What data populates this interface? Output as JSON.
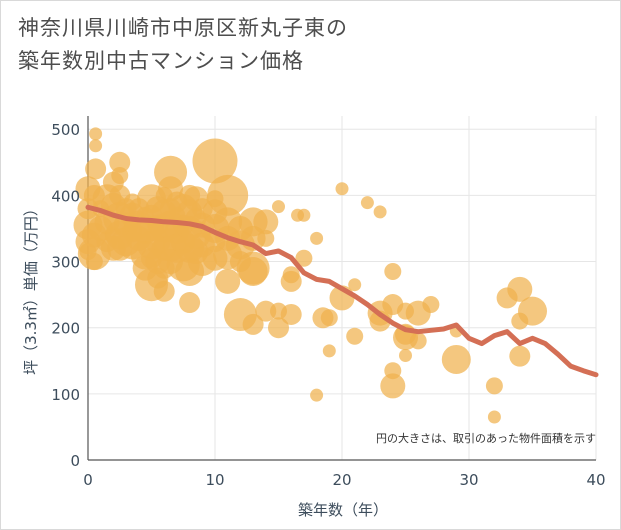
{
  "title": "神奈川県川崎市中原区新丸子東の\n築年数別中古マンション価格",
  "chart_data": {
    "type": "scatter",
    "xlabel": "築年数（年）",
    "ylabel": "坪（3.3㎡）単価（万円）",
    "xlim": [
      0,
      40
    ],
    "ylim": [
      0,
      520
    ],
    "xticks": [
      "0",
      "10",
      "20",
      "30",
      "40"
    ],
    "yticks": [
      "0",
      "100",
      "200",
      "300",
      "400",
      "500"
    ],
    "note": "円の大きさは、取引のあった物件面積を示す",
    "colors": {
      "points": "#f0b24e",
      "trend": "#d46f55",
      "grid": "#e6e6e6"
    },
    "points": [
      {
        "x": 0,
        "y": 410,
        "s": 5
      },
      {
        "x": 0,
        "y": 380,
        "s": 4
      },
      {
        "x": 0,
        "y": 355,
        "s": 6
      },
      {
        "x": 0,
        "y": 330,
        "s": 5
      },
      {
        "x": 0,
        "y": 315,
        "s": 3
      },
      {
        "x": 0.5,
        "y": 400,
        "s": 4
      },
      {
        "x": 0.5,
        "y": 340,
        "s": 5
      },
      {
        "x": 0.5,
        "y": 312,
        "s": 7
      },
      {
        "x": 0.5,
        "y": 300,
        "s": 3
      },
      {
        "x": 0.6,
        "y": 493,
        "s": 2
      },
      {
        "x": 0.6,
        "y": 475,
        "s": 2
      },
      {
        "x": 0.6,
        "y": 440,
        "s": 4
      },
      {
        "x": 1,
        "y": 380,
        "s": 3
      },
      {
        "x": 1,
        "y": 350,
        "s": 5
      },
      {
        "x": 1.5,
        "y": 395,
        "s": 6
      },
      {
        "x": 1.5,
        "y": 360,
        "s": 5
      },
      {
        "x": 1.5,
        "y": 330,
        "s": 4
      },
      {
        "x": 2,
        "y": 420,
        "s": 4
      },
      {
        "x": 2,
        "y": 385,
        "s": 5
      },
      {
        "x": 2,
        "y": 340,
        "s": 3
      },
      {
        "x": 2,
        "y": 320,
        "s": 5
      },
      {
        "x": 2.5,
        "y": 450,
        "s": 4
      },
      {
        "x": 2.5,
        "y": 430,
        "s": 3
      },
      {
        "x": 2.5,
        "y": 400,
        "s": 4
      },
      {
        "x": 2.5,
        "y": 365,
        "s": 7
      },
      {
        "x": 2.5,
        "y": 340,
        "s": 6
      },
      {
        "x": 2.5,
        "y": 320,
        "s": 5
      },
      {
        "x": 3,
        "y": 380,
        "s": 4
      },
      {
        "x": 3,
        "y": 355,
        "s": 5
      },
      {
        "x": 3,
        "y": 330,
        "s": 6
      },
      {
        "x": 3.5,
        "y": 390,
        "s": 3
      },
      {
        "x": 3.5,
        "y": 370,
        "s": 5
      },
      {
        "x": 3.5,
        "y": 345,
        "s": 4
      },
      {
        "x": 3.5,
        "y": 325,
        "s": 6
      },
      {
        "x": 4,
        "y": 380,
        "s": 4
      },
      {
        "x": 4,
        "y": 355,
        "s": 6
      },
      {
        "x": 4,
        "y": 335,
        "s": 5
      },
      {
        "x": 4.5,
        "y": 370,
        "s": 3
      },
      {
        "x": 4.5,
        "y": 345,
        "s": 5
      },
      {
        "x": 4.5,
        "y": 310,
        "s": 6
      },
      {
        "x": 4.5,
        "y": 290,
        "s": 5
      },
      {
        "x": 5,
        "y": 395,
        "s": 6
      },
      {
        "x": 5,
        "y": 370,
        "s": 4
      },
      {
        "x": 5,
        "y": 350,
        "s": 5
      },
      {
        "x": 5,
        "y": 325,
        "s": 6
      },
      {
        "x": 5,
        "y": 305,
        "s": 4
      },
      {
        "x": 5,
        "y": 265,
        "s": 7
      },
      {
        "x": 5.5,
        "y": 380,
        "s": 5
      },
      {
        "x": 5.5,
        "y": 355,
        "s": 4
      },
      {
        "x": 5.5,
        "y": 330,
        "s": 5
      },
      {
        "x": 5.5,
        "y": 300,
        "s": 5
      },
      {
        "x": 5.5,
        "y": 275,
        "s": 4
      },
      {
        "x": 6,
        "y": 400,
        "s": 3
      },
      {
        "x": 6,
        "y": 375,
        "s": 5
      },
      {
        "x": 6,
        "y": 350,
        "s": 6
      },
      {
        "x": 6,
        "y": 320,
        "s": 5
      },
      {
        "x": 6,
        "y": 290,
        "s": 4
      },
      {
        "x": 6,
        "y": 255,
        "s": 4
      },
      {
        "x": 6.5,
        "y": 435,
        "s": 7
      },
      {
        "x": 6.5,
        "y": 410,
        "s": 5
      },
      {
        "x": 6.5,
        "y": 380,
        "s": 4
      },
      {
        "x": 6.5,
        "y": 355,
        "s": 6
      },
      {
        "x": 6.5,
        "y": 325,
        "s": 7
      },
      {
        "x": 6.5,
        "y": 300,
        "s": 5
      },
      {
        "x": 7,
        "y": 390,
        "s": 4
      },
      {
        "x": 7,
        "y": 370,
        "s": 3
      },
      {
        "x": 7,
        "y": 345,
        "s": 5
      },
      {
        "x": 7,
        "y": 320,
        "s": 6
      },
      {
        "x": 7.5,
        "y": 380,
        "s": 6
      },
      {
        "x": 7.5,
        "y": 355,
        "s": 4
      },
      {
        "x": 7.5,
        "y": 330,
        "s": 5
      },
      {
        "x": 7.5,
        "y": 295,
        "s": 7
      },
      {
        "x": 8,
        "y": 400,
        "s": 4
      },
      {
        "x": 8,
        "y": 375,
        "s": 5
      },
      {
        "x": 8,
        "y": 350,
        "s": 5
      },
      {
        "x": 8,
        "y": 320,
        "s": 6
      },
      {
        "x": 8,
        "y": 285,
        "s": 6
      },
      {
        "x": 8,
        "y": 238,
        "s": 4
      },
      {
        "x": 8.5,
        "y": 395,
        "s": 5
      },
      {
        "x": 8.5,
        "y": 365,
        "s": 4
      },
      {
        "x": 8.5,
        "y": 340,
        "s": 6
      },
      {
        "x": 8.5,
        "y": 315,
        "s": 5
      },
      {
        "x": 9,
        "y": 380,
        "s": 4
      },
      {
        "x": 9,
        "y": 355,
        "s": 5
      },
      {
        "x": 9,
        "y": 325,
        "s": 5
      },
      {
        "x": 9,
        "y": 300,
        "s": 6
      },
      {
        "x": 10,
        "y": 452,
        "s": 10
      },
      {
        "x": 10,
        "y": 395,
        "s": 3
      },
      {
        "x": 10,
        "y": 375,
        "s": 5
      },
      {
        "x": 10,
        "y": 350,
        "s": 6
      },
      {
        "x": 10,
        "y": 330,
        "s": 4
      },
      {
        "x": 10,
        "y": 305,
        "s": 5
      },
      {
        "x": 11,
        "y": 400,
        "s": 9
      },
      {
        "x": 11,
        "y": 360,
        "s": 6
      },
      {
        "x": 11,
        "y": 335,
        "s": 5
      },
      {
        "x": 11,
        "y": 310,
        "s": 6
      },
      {
        "x": 11,
        "y": 270,
        "s": 5
      },
      {
        "x": 12,
        "y": 350,
        "s": 5
      },
      {
        "x": 12,
        "y": 325,
        "s": 6
      },
      {
        "x": 12,
        "y": 300,
        "s": 4
      },
      {
        "x": 12,
        "y": 220,
        "s": 7
      },
      {
        "x": 13,
        "y": 360,
        "s": 6
      },
      {
        "x": 13,
        "y": 335,
        "s": 5
      },
      {
        "x": 13,
        "y": 290,
        "s": 7
      },
      {
        "x": 13,
        "y": 285,
        "s": 6
      },
      {
        "x": 13,
        "y": 205,
        "s": 4
      },
      {
        "x": 14,
        "y": 360,
        "s": 5
      },
      {
        "x": 14,
        "y": 335,
        "s": 3
      },
      {
        "x": 14,
        "y": 225,
        "s": 4
      },
      {
        "x": 15,
        "y": 383,
        "s": 2
      },
      {
        "x": 15,
        "y": 225,
        "s": 3
      },
      {
        "x": 15,
        "y": 200,
        "s": 4
      },
      {
        "x": 16,
        "y": 280,
        "s": 3
      },
      {
        "x": 16,
        "y": 270,
        "s": 4
      },
      {
        "x": 16,
        "y": 220,
        "s": 4
      },
      {
        "x": 16.5,
        "y": 370,
        "s": 2
      },
      {
        "x": 17,
        "y": 370,
        "s": 2
      },
      {
        "x": 17,
        "y": 305,
        "s": 3
      },
      {
        "x": 18,
        "y": 335,
        "s": 2
      },
      {
        "x": 18,
        "y": 98,
        "s": 2
      },
      {
        "x": 18.5,
        "y": 215,
        "s": 4
      },
      {
        "x": 19,
        "y": 215,
        "s": 3
      },
      {
        "x": 19,
        "y": 165,
        "s": 2
      },
      {
        "x": 20,
        "y": 410,
        "s": 2
      },
      {
        "x": 20,
        "y": 245,
        "s": 5
      },
      {
        "x": 21,
        "y": 265,
        "s": 2
      },
      {
        "x": 21,
        "y": 187,
        "s": 3
      },
      {
        "x": 22,
        "y": 389,
        "s": 2
      },
      {
        "x": 23,
        "y": 375,
        "s": 2
      },
      {
        "x": 23,
        "y": 222,
        "s": 5
      },
      {
        "x": 23,
        "y": 210,
        "s": 4
      },
      {
        "x": 24,
        "y": 285,
        "s": 3
      },
      {
        "x": 24,
        "y": 235,
        "s": 4
      },
      {
        "x": 24,
        "y": 135,
        "s": 3
      },
      {
        "x": 24,
        "y": 112,
        "s": 5
      },
      {
        "x": 25,
        "y": 225,
        "s": 3
      },
      {
        "x": 25,
        "y": 190,
        "s": 4
      },
      {
        "x": 25,
        "y": 185,
        "s": 5
      },
      {
        "x": 25,
        "y": 158,
        "s": 2
      },
      {
        "x": 26,
        "y": 222,
        "s": 5
      },
      {
        "x": 26,
        "y": 180,
        "s": 3
      },
      {
        "x": 27,
        "y": 235,
        "s": 3
      },
      {
        "x": 29,
        "y": 152,
        "s": 6
      },
      {
        "x": 29,
        "y": 195,
        "s": 2
      },
      {
        "x": 32,
        "y": 112,
        "s": 3
      },
      {
        "x": 32,
        "y": 65,
        "s": 2
      },
      {
        "x": 33,
        "y": 245,
        "s": 4
      },
      {
        "x": 34,
        "y": 258,
        "s": 5
      },
      {
        "x": 34,
        "y": 210,
        "s": 3
      },
      {
        "x": 34,
        "y": 157,
        "s": 4
      },
      {
        "x": 35,
        "y": 225,
        "s": 6
      }
    ],
    "trend": {
      "x": [
        0,
        1,
        2,
        3,
        4,
        5,
        6,
        7,
        8,
        9,
        10,
        11,
        12,
        13,
        14,
        15,
        16,
        17,
        18,
        19,
        20,
        21,
        22,
        23,
        24,
        25,
        26,
        27,
        28,
        29,
        30,
        31,
        32,
        33,
        34,
        35,
        36,
        37,
        38,
        39,
        40
      ],
      "y": [
        382,
        377,
        370,
        365,
        363,
        362,
        360,
        359,
        357,
        353,
        344,
        336,
        330,
        325,
        312,
        316,
        306,
        283,
        273,
        270,
        259,
        248,
        235,
        220,
        207,
        197,
        194,
        196,
        198,
        204,
        184,
        176,
        188,
        194,
        176,
        184,
        176,
        160,
        142,
        135,
        129
      ]
    }
  }
}
